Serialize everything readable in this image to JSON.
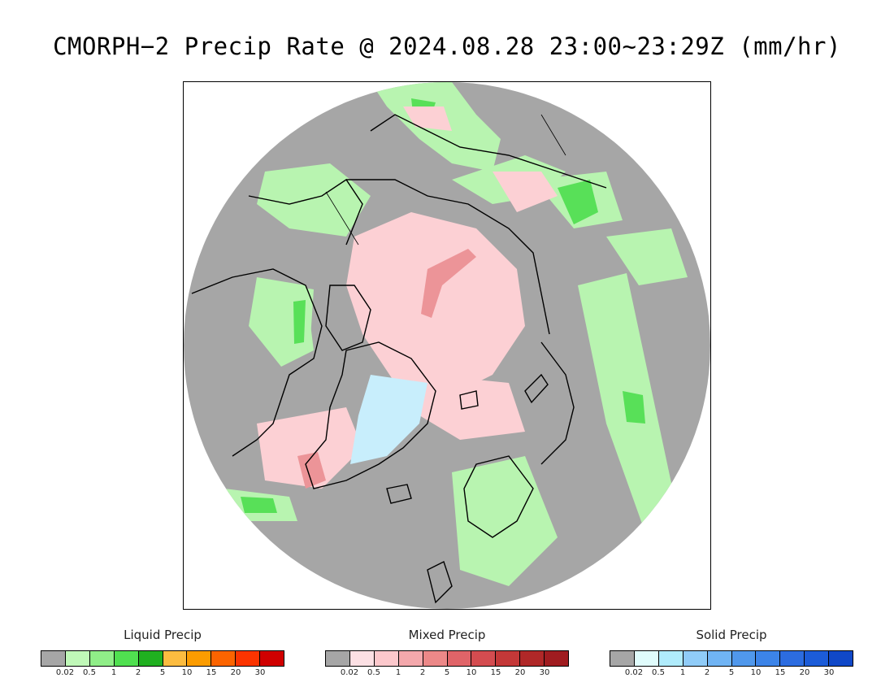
{
  "title": "CMORPH−2 Precip Rate @ 2024.08.28 23:00~23:29Z (mm/hr)",
  "map": {
    "background_color": "#a6a6a6",
    "coast_color": "#000000"
  },
  "legends": [
    {
      "title": "Liquid Precip",
      "colors": [
        "#a6a6a6",
        "#c0f8b8",
        "#90ee88",
        "#50e050",
        "#20b020",
        "#fcbc40",
        "#fc9c00",
        "#fc6400",
        "#fc3400",
        "#d00000"
      ],
      "ticks": [
        "0.02",
        "0.5",
        "1",
        "2",
        "5",
        "10",
        "15",
        "20",
        "30"
      ]
    },
    {
      "title": "Mixed Precip",
      "colors": [
        "#a6a6a6",
        "#fce0e4",
        "#fcc8cc",
        "#f4a8ac",
        "#ec8888",
        "#e06468",
        "#d44c50",
        "#c43838",
        "#b02828",
        "#a01c20"
      ],
      "ticks": [
        "0.02",
        "0.5",
        "1",
        "2",
        "5",
        "10",
        "15",
        "20",
        "30"
      ]
    },
    {
      "title": "Solid Precip",
      "colors": [
        "#a6a6a6",
        "#e0fcfc",
        "#b0ecfc",
        "#90ccf8",
        "#70b4f4",
        "#5098ec",
        "#3c84e8",
        "#2c6ce0",
        "#1c5cd8",
        "#1048c8"
      ],
      "ticks": [
        "0.02",
        "0.5",
        "1",
        "2",
        "5",
        "10",
        "15",
        "20",
        "30"
      ]
    }
  ]
}
